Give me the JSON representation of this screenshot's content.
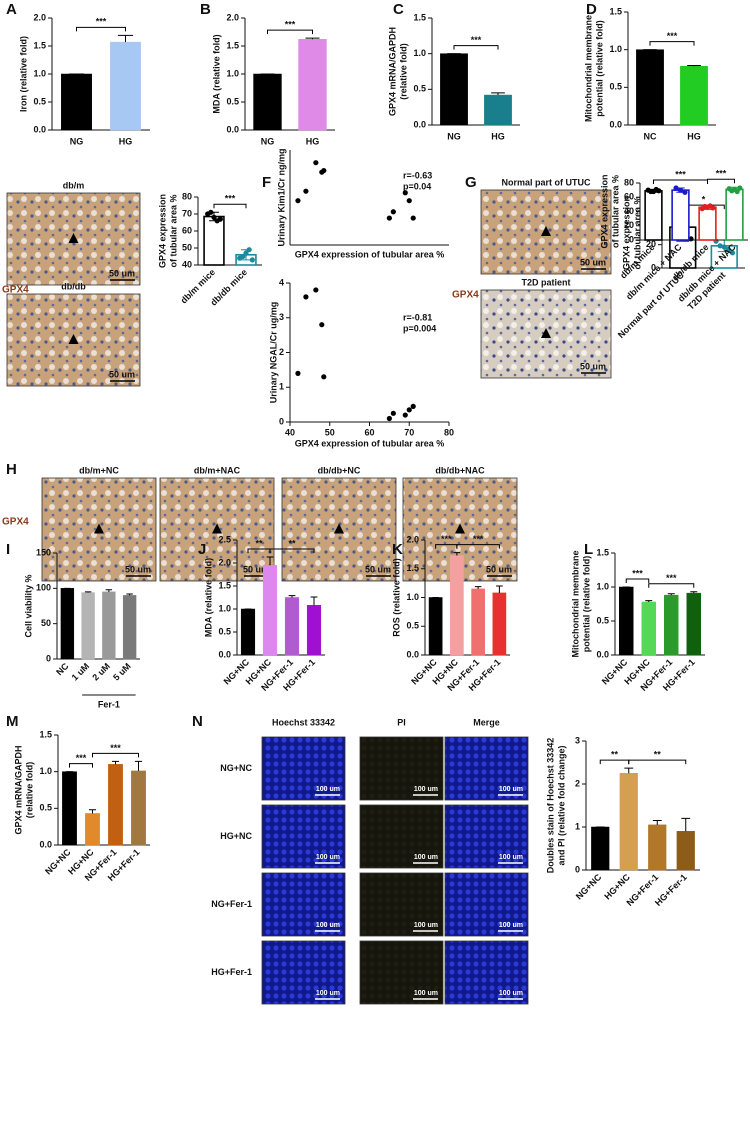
{
  "chart_data": [
    {
      "panel": "A",
      "type": "bar",
      "ylabel": [
        "Iron (relative fold)"
      ],
      "categories": [
        "NG",
        "HG"
      ],
      "values": [
        1.0,
        1.57
      ],
      "errors": [
        0,
        0.12
      ],
      "colors": [
        "#000000",
        "#a8c8f4"
      ],
      "ylim": [
        0,
        2
      ],
      "yticks": [
        {
          "value": 0,
          "label": "0.0"
        },
        0.5,
        {
          "value": 1,
          "label": "1.0"
        },
        1.5,
        {
          "value": 2,
          "label": "2.0"
        }
      ],
      "significance": [
        {
          "between": [
            0,
            1
          ],
          "label": "***"
        }
      ]
    },
    {
      "panel": "B",
      "type": "bar",
      "ylabel": [
        "MDA (relative fold)"
      ],
      "categories": [
        "NG",
        "HG"
      ],
      "values": [
        1.0,
        1.62
      ],
      "errors": [
        0,
        0.02
      ],
      "colors": [
        "#000000",
        "#e08ae8"
      ],
      "ylim": [
        0,
        2
      ],
      "yticks": [
        {
          "value": 0,
          "label": "0.0"
        },
        0.5,
        {
          "value": 1,
          "label": "1.0"
        },
        1.5,
        {
          "value": 2,
          "label": "2.0"
        }
      ],
      "significance": [
        {
          "between": [
            0,
            1
          ],
          "label": "***"
        }
      ]
    },
    {
      "panel": "C",
      "type": "bar",
      "ylabel": [
        "GPX4 mRNA/GAPDH",
        "(relative fold)"
      ],
      "categories": [
        "NG",
        "HG"
      ],
      "values": [
        1.0,
        0.42
      ],
      "errors": [
        0,
        0.03
      ],
      "colors": [
        "#000000",
        "#1a7f8c"
      ],
      "ylim": [
        0,
        1.5
      ],
      "yticks": [
        {
          "value": 0,
          "label": "0.0"
        },
        0.5,
        {
          "value": 1,
          "label": "1.0"
        },
        1.5
      ],
      "significance": [
        {
          "between": [
            0,
            1
          ],
          "label": "***"
        }
      ]
    },
    {
      "panel": "D",
      "type": "bar",
      "ylabel": [
        "Mitochondrial membrane",
        "potential (relative fold)"
      ],
      "categories": [
        "NC",
        "HG"
      ],
      "values": [
        1.0,
        0.78
      ],
      "errors": [
        0,
        0.01
      ],
      "colors": [
        "#000000",
        "#22cc22"
      ],
      "ylim": [
        0,
        1.5
      ],
      "yticks": [
        {
          "value": 0,
          "label": "0.0"
        },
        0.5,
        {
          "value": 1,
          "label": "1.0"
        },
        1.5
      ],
      "significance": [
        {
          "between": [
            0,
            1
          ],
          "label": "***"
        }
      ]
    },
    {
      "panel": "E",
      "type": "bar",
      "style": "hollow",
      "image_labels": [
        "db/m",
        "db/db"
      ],
      "stain_label": "GPX4",
      "scale_label": "50 um",
      "ylabel": [
        "GPX4 expression",
        "of tubular area %"
      ],
      "categories": [
        "db/m mice",
        "db/db mice"
      ],
      "values": [
        68.5,
        46
      ],
      "errors": [
        2.5,
        3
      ],
      "points": [
        [
          70,
          71,
          68,
          66,
          67
        ],
        [
          44,
          45,
          47,
          49,
          43
        ]
      ],
      "colors": [
        "#000000",
        "#1a8a9c"
      ],
      "ylim": [
        40,
        80
      ],
      "yticks": [
        40,
        50,
        60,
        70,
        80
      ],
      "significance": [
        {
          "between": [
            0,
            1
          ],
          "label": "***"
        }
      ]
    },
    {
      "panel": "F",
      "type": "scatter",
      "ylabel": [
        "Urinary Kim1/Cr ng/mg"
      ],
      "xlabel": "GPX4 expression of tubular area %",
      "annotations": [
        "r=-0.63",
        "p=0.04"
      ],
      "x": [
        42,
        44,
        46.5,
        48,
        48.5,
        65,
        66,
        69,
        70,
        71
      ],
      "values": [
        14,
        17,
        26,
        23,
        23.5,
        8.5,
        10.5,
        16.5,
        14,
        8.5
      ],
      "color": "#000000",
      "xlim": [
        40,
        80
      ],
      "ylim": [
        0,
        30
      ]
    },
    {
      "type": "scatter",
      "ylabel": [
        "Urinary NGAL/Cr ug/mg"
      ],
      "xlabel": "GPX4 expression of tubular area %",
      "annotations": [
        "r=-0.81",
        "p=0.004"
      ],
      "x": [
        42,
        44,
        46.5,
        48,
        48.5,
        65,
        66,
        69,
        70,
        71
      ],
      "values": [
        1.4,
        3.6,
        3.8,
        2.8,
        1.3,
        0.1,
        0.25,
        0.2,
        0.35,
        0.45
      ],
      "color": "#000000",
      "xlim": [
        40,
        80
      ],
      "ylim": [
        0,
        4
      ],
      "xticks": [
        40,
        50,
        60,
        70,
        80
      ],
      "yticks": [
        0,
        1,
        2,
        3,
        4
      ]
    },
    {
      "panel": "G",
      "type": "bar",
      "style": "hollow",
      "image_labels": [
        "Normal part of UTUC",
        "T2D patient"
      ],
      "stain_label": "GPX4",
      "scale_label": "50 um",
      "ylabel": [
        "GPX4 expression",
        "of tubular area %"
      ],
      "categories": [
        "Normal part of UTUC",
        "T2D patient"
      ],
      "values": [
        35,
        19
      ],
      "errors": [
        12,
        5
      ],
      "points": [
        [
          47,
          46,
          35,
          25,
          25
        ],
        [
          23,
          19,
          18,
          16,
          13
        ]
      ],
      "colors": [
        "#000000",
        "#1a8a9c"
      ],
      "ylim": [
        0,
        60
      ],
      "yticks": [
        0,
        20,
        40,
        60
      ],
      "significance": [
        {
          "between": [
            0,
            1
          ],
          "label": "*"
        }
      ]
    },
    {
      "panel": "H",
      "type": "bar",
      "style": "hollow",
      "image_labels": [
        "db/m+NC",
        "db/m+NAC",
        "db/db+NC",
        "db/db+NAC"
      ],
      "stain_label": "GPX4",
      "scale_label": "50 um",
      "ylabel": [
        "GPX4 expression",
        "of tubular area %"
      ],
      "categories": [
        "db/m mice",
        "db/m mice + NAC",
        "db/db mice",
        "db/db mice + NAC"
      ],
      "values": [
        69,
        70,
        46,
        71
      ],
      "errors": [
        2,
        3,
        3,
        3
      ],
      "points": [
        [
          70,
          68,
          68,
          71,
          69
        ],
        [
          73,
          70,
          67
        ],
        [
          44,
          47,
          46,
          48,
          45
        ],
        [
          72,
          69,
          71,
          68,
          73
        ]
      ],
      "colors": [
        "#000000",
        "#1a1ad0",
        "#e02020",
        "#20a040"
      ],
      "ylim": [
        0,
        80
      ],
      "yticks": [
        0,
        20,
        40,
        60,
        80
      ],
      "significance": [
        {
          "between": [
            0,
            2
          ],
          "label": "***"
        },
        {
          "between": [
            2,
            3
          ],
          "label": "***"
        }
      ]
    },
    {
      "panel": "I",
      "type": "bar",
      "ylabel": [
        "Cell viability %"
      ],
      "categories": [
        "NC",
        "1 uM",
        "2 uM",
        "5 uM"
      ],
      "group": {
        "label": "Fer-1",
        "between": [
          1,
          3
        ]
      },
      "values": [
        100,
        94,
        95,
        90
      ],
      "errors": [
        0,
        1,
        3,
        2
      ],
      "colors": [
        "#000000",
        "#b4b4b4",
        "#9a9a9a",
        "#7a7a7a"
      ],
      "ylim": [
        0,
        150
      ],
      "yticks": [
        0,
        50,
        100,
        150
      ]
    },
    {
      "panel": "J",
      "type": "bar",
      "ylabel": [
        "MDA (relative fold)"
      ],
      "categories": [
        "NG+NC",
        "HG+NC",
        "NG+Fer-1",
        "HG+Fer-1"
      ],
      "values": [
        1.0,
        1.95,
        1.25,
        1.08
      ],
      "errors": [
        0,
        0.18,
        0.04,
        0.18
      ],
      "colors": [
        "#000000",
        "#dd88ee",
        "#b05cd0",
        "#a010d0"
      ],
      "ylim": [
        0,
        2.5
      ],
      "yticks": [
        {
          "value": 0,
          "label": "0.0"
        },
        0.5,
        {
          "value": 1,
          "label": "1.0"
        },
        1.5,
        {
          "value": 2,
          "label": "2.0"
        },
        2.5
      ],
      "significance": [
        {
          "between": [
            0,
            1
          ],
          "label": "**"
        },
        {
          "between": [
            1,
            3
          ],
          "label": "**"
        }
      ]
    },
    {
      "panel": "K",
      "type": "bar",
      "ylabel": [
        "ROS (relative fold)"
      ],
      "categories": [
        "NG+NC",
        "HG+NC",
        "NG+Fer-1",
        "HG+Fer-1"
      ],
      "values": [
        1.0,
        1.73,
        1.15,
        1.08
      ],
      "errors": [
        0,
        0.05,
        0.04,
        0.12
      ],
      "colors": [
        "#000000",
        "#f4a0a0",
        "#f07070",
        "#e83030"
      ],
      "ylim": [
        0,
        2
      ],
      "yticks": [
        {
          "value": 0,
          "label": "0.0"
        },
        0.5,
        {
          "value": 1,
          "label": "1.0"
        },
        1.5,
        {
          "value": 2,
          "label": "2.0"
        }
      ],
      "significance": [
        {
          "between": [
            0,
            1
          ],
          "label": "***"
        },
        {
          "between": [
            1,
            3
          ],
          "label": "***"
        }
      ]
    },
    {
      "panel": "L",
      "type": "bar",
      "ylabel": [
        "Mitochondrial membrane",
        "potential (relative fold)"
      ],
      "categories": [
        "NG+NC",
        "HG+NC",
        "NG+Fer-1",
        "HG+Fer-1"
      ],
      "values": [
        1.0,
        0.78,
        0.88,
        0.91
      ],
      "errors": [
        0,
        0.02,
        0.02,
        0.02
      ],
      "colors": [
        "#000000",
        "#55d855",
        "#2a9a2a",
        "#106010"
      ],
      "ylim": [
        0,
        1.5
      ],
      "yticks": [
        {
          "value": 0,
          "label": "0.0"
        },
        0.5,
        {
          "value": 1,
          "label": "1.0"
        },
        1.5
      ],
      "significance": [
        {
          "between": [
            0,
            1
          ],
          "label": "***"
        },
        {
          "between": [
            1,
            3
          ],
          "label": "***"
        }
      ]
    },
    {
      "panel": "M",
      "type": "bar",
      "ylabel": [
        "GPX4 mRNA/GAPDH",
        "(relative fold)"
      ],
      "categories": [
        "NG+NC",
        "HG+NC",
        "NG+Fer-1",
        "HG+Fer-1"
      ],
      "values": [
        1.0,
        0.43,
        1.1,
        1.01
      ],
      "errors": [
        0,
        0.05,
        0.04,
        0.13
      ],
      "colors": [
        "#000000",
        "#e08a2c",
        "#c06010",
        "#a07840"
      ],
      "ylim": [
        0,
        1.5
      ],
      "yticks": [
        {
          "value": 0,
          "label": "0.0"
        },
        0.5,
        {
          "value": 1,
          "label": "1.0"
        },
        1.5
      ],
      "significance": [
        {
          "between": [
            0,
            1
          ],
          "label": "***"
        },
        {
          "between": [
            1,
            3
          ],
          "label": "***"
        }
      ]
    },
    {
      "panel": "N",
      "type": "bar",
      "image_columns": [
        "Hoechst 33342",
        "PI",
        "Merge"
      ],
      "image_rows": [
        "NG+NC",
        "HG+NC",
        "NG+Fer-1",
        "HG+Fer-1"
      ],
      "scale_label": "100 um",
      "ylabel": [
        "Doubles stain of Hoechst 33342",
        "and PI (relative fold change)"
      ],
      "categories": [
        "NG+NC",
        "HG+NC",
        "NG+Fer-1",
        "HG+Fer-1"
      ],
      "values": [
        1.0,
        2.25,
        1.05,
        0.9
      ],
      "errors": [
        0,
        0.12,
        0.1,
        0.3
      ],
      "colors": [
        "#000000",
        "#d4a050",
        "#b07828",
        "#8c5c18"
      ],
      "ylim": [
        0,
        3
      ],
      "yticks": [
        0,
        1,
        2,
        3
      ],
      "significance": [
        {
          "between": [
            0,
            1
          ],
          "label": "**"
        },
        {
          "between": [
            1,
            3
          ],
          "label": "**"
        }
      ]
    }
  ]
}
